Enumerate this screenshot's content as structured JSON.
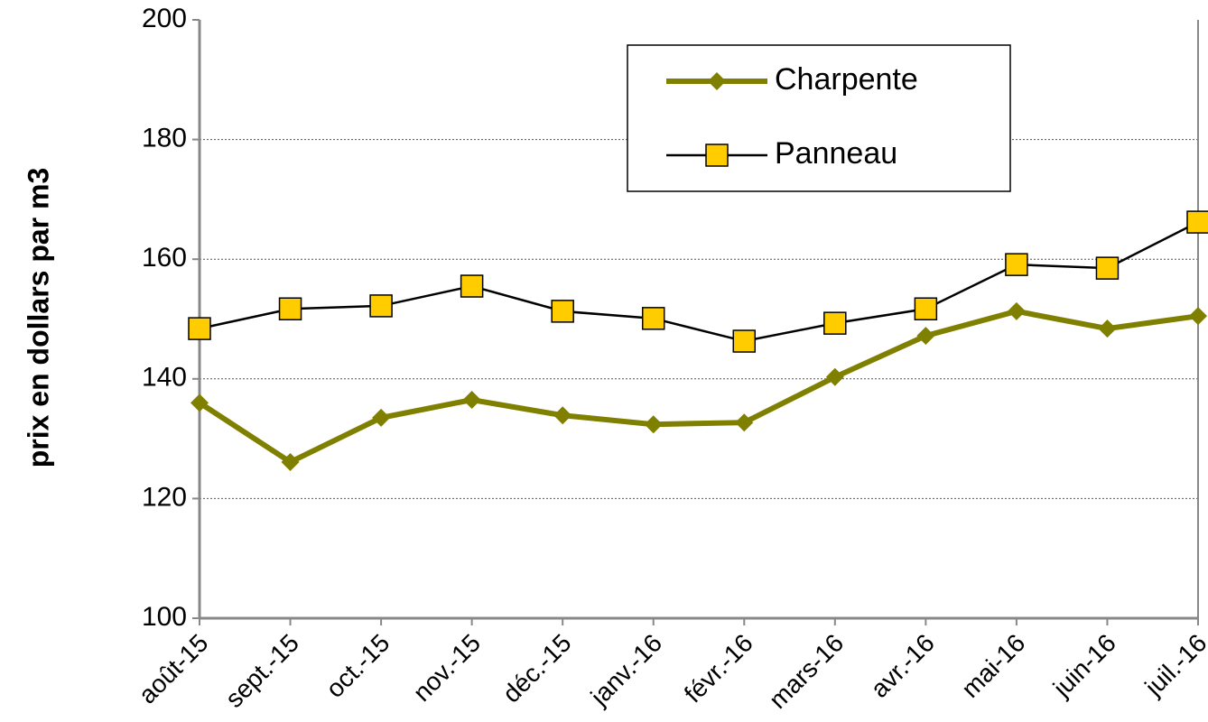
{
  "chart_data": {
    "type": "line",
    "y_label": "prix en dollars par m3",
    "categories": [
      "août-15",
      "sept.-15",
      "oct.-15",
      "nov.-15",
      "déc.-15",
      "janv.-16",
      "févr.-16",
      "mars-16",
      "avr.-16",
      "mai-16",
      "juin-16",
      "juil.-16"
    ],
    "series": [
      {
        "name": "Charpente",
        "color": "#808000",
        "marker": "diamond",
        "values": [
          136.0,
          126.1,
          133.5,
          136.5,
          133.9,
          132.4,
          132.7,
          140.3,
          147.2,
          151.3,
          148.4,
          150.5
        ]
      },
      {
        "name": "Panneau",
        "color": "#000000",
        "marker_color": "#ffcc00",
        "marker": "square",
        "values": [
          148.4,
          151.7,
          152.2,
          155.5,
          151.3,
          150.1,
          146.3,
          149.3,
          151.7,
          159.1,
          158.5,
          166.2
        ]
      }
    ],
    "ylim": [
      100,
      200
    ],
    "yticks": [
      100,
      120,
      140,
      160,
      180,
      200
    ],
    "grid": true
  }
}
